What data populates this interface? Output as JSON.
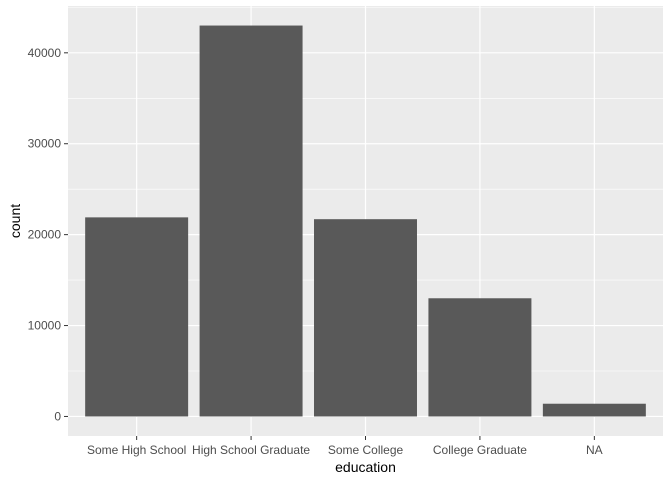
{
  "chart_data": {
    "type": "bar",
    "categories": [
      "Some High School",
      "High School Graduate",
      "Some College",
      "College Graduate",
      "NA"
    ],
    "values": [
      21900,
      43000,
      21700,
      13000,
      1400
    ],
    "xlabel": "education",
    "ylabel": "count",
    "ylim": [
      -2150,
      45150
    ],
    "yticks": [
      0,
      10000,
      20000,
      30000,
      40000
    ],
    "ytick_labels": [
      "0",
      "10000",
      "20000",
      "30000",
      "40000"
    ],
    "grid": true,
    "colors": {
      "panel_background": "#ebebeb",
      "grid_major": "#ffffff",
      "bar_fill": "#595959",
      "tick_text": "#4d4d4d",
      "tick_mark": "#333333"
    }
  }
}
